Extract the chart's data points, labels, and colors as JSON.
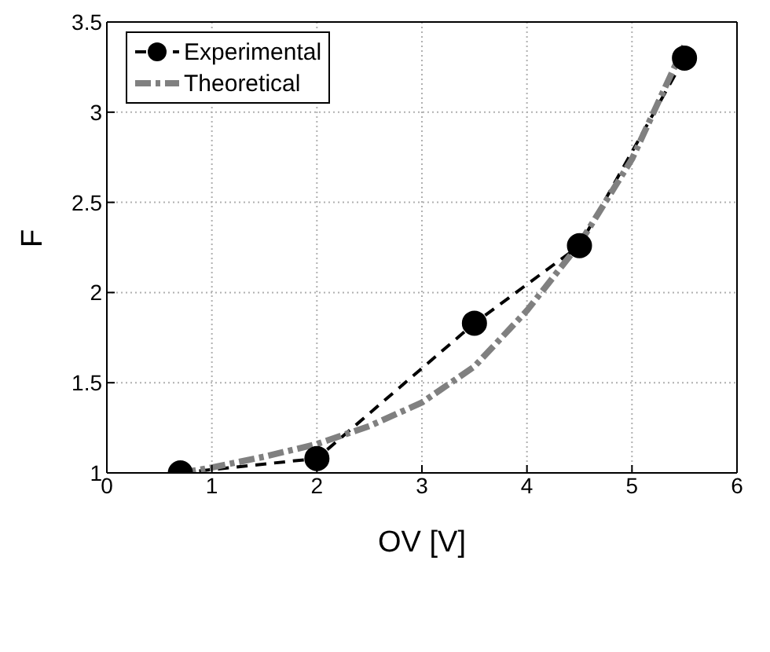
{
  "chart_data": {
    "type": "line",
    "xlabel": "OV [V]",
    "ylabel": "F",
    "xlim": [
      0,
      6
    ],
    "xticks": [
      0,
      1,
      2,
      3,
      4,
      5,
      6
    ],
    "ylim": [
      1,
      3.5
    ],
    "yticks": [
      1,
      1.5,
      2,
      2.5,
      3,
      3.5
    ],
    "grid": true,
    "legend": "top left",
    "series": [
      {
        "name": "Experimental",
        "color": "#000000",
        "marker": "circle",
        "line_style": "dashed",
        "x": [
          0.7,
          2,
          3.5,
          4.5,
          5.5
        ],
        "values": [
          1.0,
          1.08,
          1.83,
          2.26,
          3.3
        ]
      },
      {
        "name": "Theoretical",
        "color": "#808080",
        "marker": "none",
        "line_style": "dashed",
        "x": [
          0.7,
          1,
          1.5,
          2,
          2.5,
          3,
          3.5,
          4,
          4.5,
          5,
          5.5
        ],
        "values": [
          1.0,
          1.03,
          1.09,
          1.16,
          1.26,
          1.39,
          1.59,
          1.9,
          2.27,
          2.74,
          3.37
        ]
      }
    ]
  }
}
